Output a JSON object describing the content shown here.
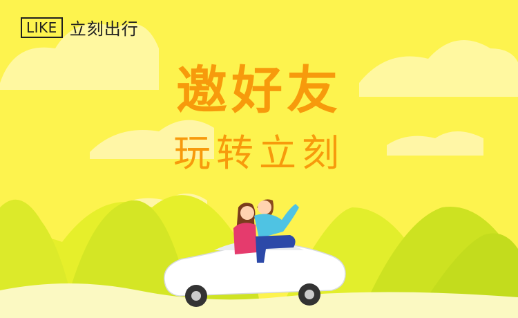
{
  "brand": {
    "logo_text": "LIKE",
    "name": "立刻出行"
  },
  "headline": {
    "line1": "邀好友",
    "line2": "玩转立刻"
  },
  "colors": {
    "background": "#fdf34e",
    "headline": "#f79a0c",
    "cloud": "#fff9a8",
    "hill_light": "#e6f02c",
    "hill_dark": "#c8df1e",
    "car": "#ffffff"
  },
  "illustration": {
    "icons": [
      "cloud",
      "hills",
      "car",
      "couple"
    ]
  }
}
